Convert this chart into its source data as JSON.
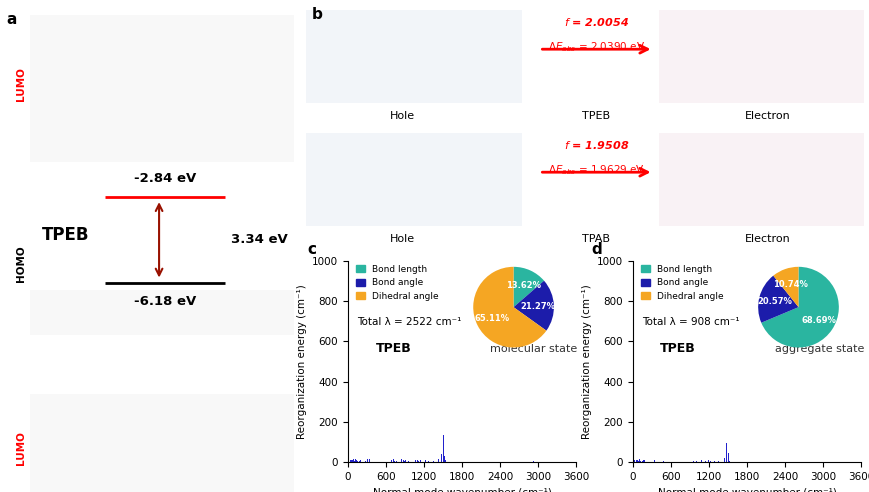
{
  "panel_a_label": "a",
  "panel_b_label": "b",
  "panel_c_label": "c",
  "panel_d_label": "d",
  "lumo_energy": "-2.84 eV",
  "homo_energy": "-6.18 eV",
  "gap_energy": "3.34 eV",
  "molecule_name": "TPEB",
  "panel_c": {
    "title": "TPEB",
    "subtitle": "molecular state",
    "total_lambda": "Total λ = 2522 cm⁻¹",
    "pie_labels": [
      "Bond length",
      "Bond angle",
      "Dihedral angle"
    ],
    "pie_values": [
      13.62,
      21.27,
      65.11
    ],
    "pie_colors": [
      "#2ab5a0",
      "#1c1caa",
      "#f5a623"
    ],
    "bar_color": "#2222cc",
    "xlabel": "Normal mode wavenumber (cm⁻¹)",
    "ylabel": "Reorganization energy (cm⁻¹)",
    "xlim": [
      0,
      3600
    ],
    "ylim": [
      0,
      1000
    ],
    "xticks": [
      0,
      600,
      1200,
      1800,
      2400,
      3000,
      3600
    ],
    "yticks": [
      0,
      200,
      400,
      600,
      800,
      1000
    ]
  },
  "panel_d": {
    "title": "TPEB",
    "subtitle": "aggregate state",
    "total_lambda": "Total λ = 908 cm⁻¹",
    "pie_labels": [
      "Bond length",
      "Bond angle",
      "Dihedral angle"
    ],
    "pie_values": [
      68.69,
      20.57,
      10.74
    ],
    "pie_colors": [
      "#2ab5a0",
      "#1c1caa",
      "#f5a623"
    ],
    "bar_color": "#2222cc",
    "xlabel": "Normal mode wavenumber (cm⁻¹)",
    "ylabel": "Reorganization energy (cm⁻¹)",
    "xlim": [
      0,
      3600
    ],
    "ylim": [
      0,
      1000
    ],
    "xticks": [
      0,
      600,
      1200,
      1800,
      2400,
      3000,
      3600
    ],
    "yticks": [
      0,
      200,
      400,
      600,
      800,
      1000
    ]
  },
  "bg_color": "#f0eeea",
  "panel_bg": "#ffffff",
  "white": "#ffffff"
}
